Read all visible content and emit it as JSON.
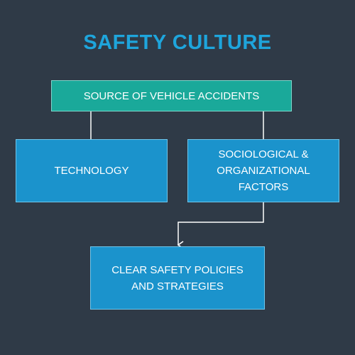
{
  "title": "SAFETY CULTURE",
  "nodes": {
    "source": "SOURCE OF VEHICLE ACCIDENTS",
    "technology": "TECHNOLOGY",
    "sociological": "SOCIOLOGICAL &\nORGANIZATIONAL\nFACTORS",
    "clear_policies": "CLEAR SAFETY POLICIES\nAND STRATEGIES"
  },
  "edges": [
    {
      "from": "source",
      "to": "technology",
      "arrow": false
    },
    {
      "from": "source",
      "to": "sociological",
      "arrow": false
    },
    {
      "from": "sociological",
      "to": "clear_policies",
      "arrow": true
    }
  ],
  "colors": {
    "background": "#2f3a47",
    "title": "#1ea5dc",
    "source_box": "#1aa99a",
    "factor_box": "#1b93cc",
    "connector": "#ffffff"
  }
}
